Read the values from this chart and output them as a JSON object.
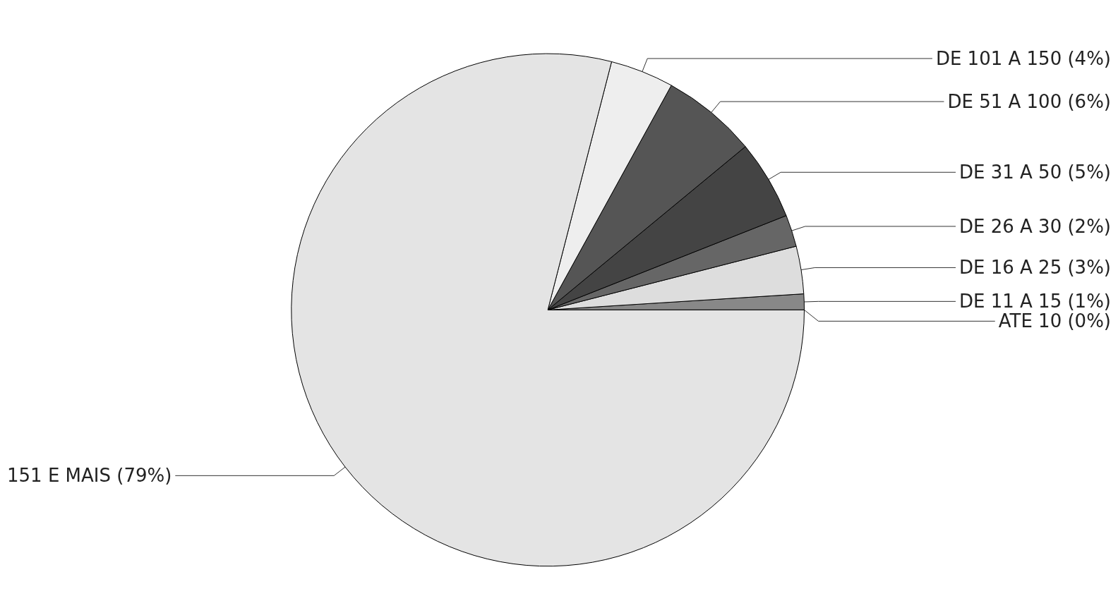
{
  "chart_data": {
    "type": "pie",
    "categories": [
      "ATE 10",
      "DE 11 A 15",
      "DE 16 A 25",
      "DE 26 A 30",
      "DE 31 A 50",
      "DE 51 A 100",
      "DE 101 A 150",
      "151 E MAIS"
    ],
    "values": [
      0,
      1,
      3,
      2,
      5,
      6,
      4,
      79
    ],
    "value_labels": [
      "(0%)",
      "(1%)",
      "(3%)",
      "(2%)",
      "(5%)",
      "(6%)",
      "(4%)",
      "(79%)"
    ],
    "colors": [
      "#000000",
      "#888888",
      "#dddddd",
      "#666666",
      "#444444",
      "#555555",
      "#eeeeee",
      "#e4e4e4"
    ],
    "legend": false
  }
}
